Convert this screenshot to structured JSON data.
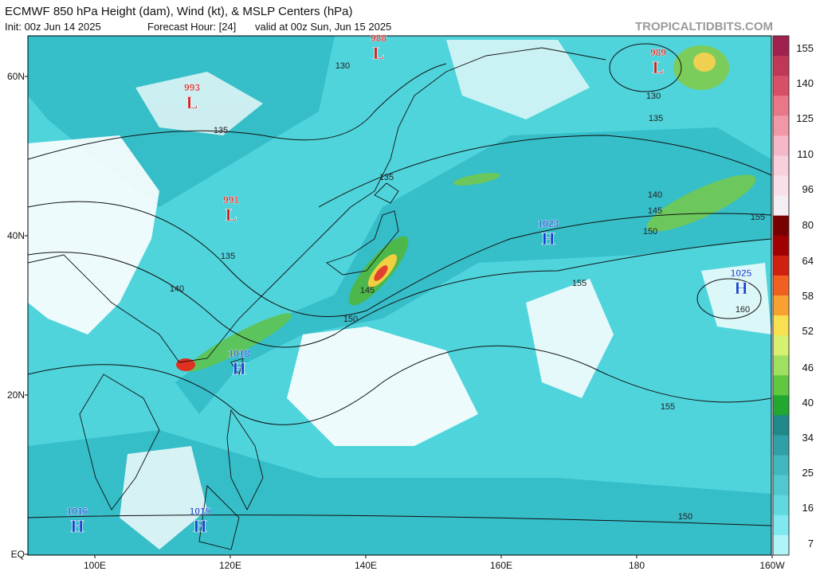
{
  "header": {
    "title": "ECMWF 850 hPa Height (dam), Wind (kt), & MSLP Centers (hPa)",
    "init": "Init: 00z Jun 14 2025",
    "forecast": "Forecast Hour: [24]",
    "valid": "valid at 00z Sun, Jun 15 2025",
    "source": "TROPICALTIDBITS.COM"
  },
  "lat_labels": [
    "60N",
    "40N",
    "20N",
    "EQ"
  ],
  "lon_labels": [
    "100E",
    "120E",
    "140E",
    "160E",
    "180",
    "160W"
  ],
  "colorbar_labels": [
    "155",
    "140",
    "125",
    "110",
    "96",
    "80",
    "64",
    "58",
    "52",
    "46",
    "40",
    "34",
    "25",
    "16",
    "7"
  ],
  "centers": [
    {
      "letter": "L",
      "value": "988"
    },
    {
      "letter": "L",
      "value": "989"
    },
    {
      "letter": "L",
      "value": "993"
    },
    {
      "letter": "L",
      "value": "991"
    },
    {
      "letter": "H",
      "value": "1023"
    },
    {
      "letter": "H",
      "value": "1025"
    },
    {
      "letter": "H",
      "value": "1018"
    },
    {
      "letter": "H",
      "value": "1016"
    },
    {
      "letter": "H",
      "value": "1015"
    }
  ],
  "contour_labels": [
    "130",
    "130",
    "135",
    "135",
    "135",
    "140",
    "145",
    "150",
    "155",
    "135",
    "140",
    "145",
    "150",
    "155",
    "160",
    "155",
    "150"
  ]
}
